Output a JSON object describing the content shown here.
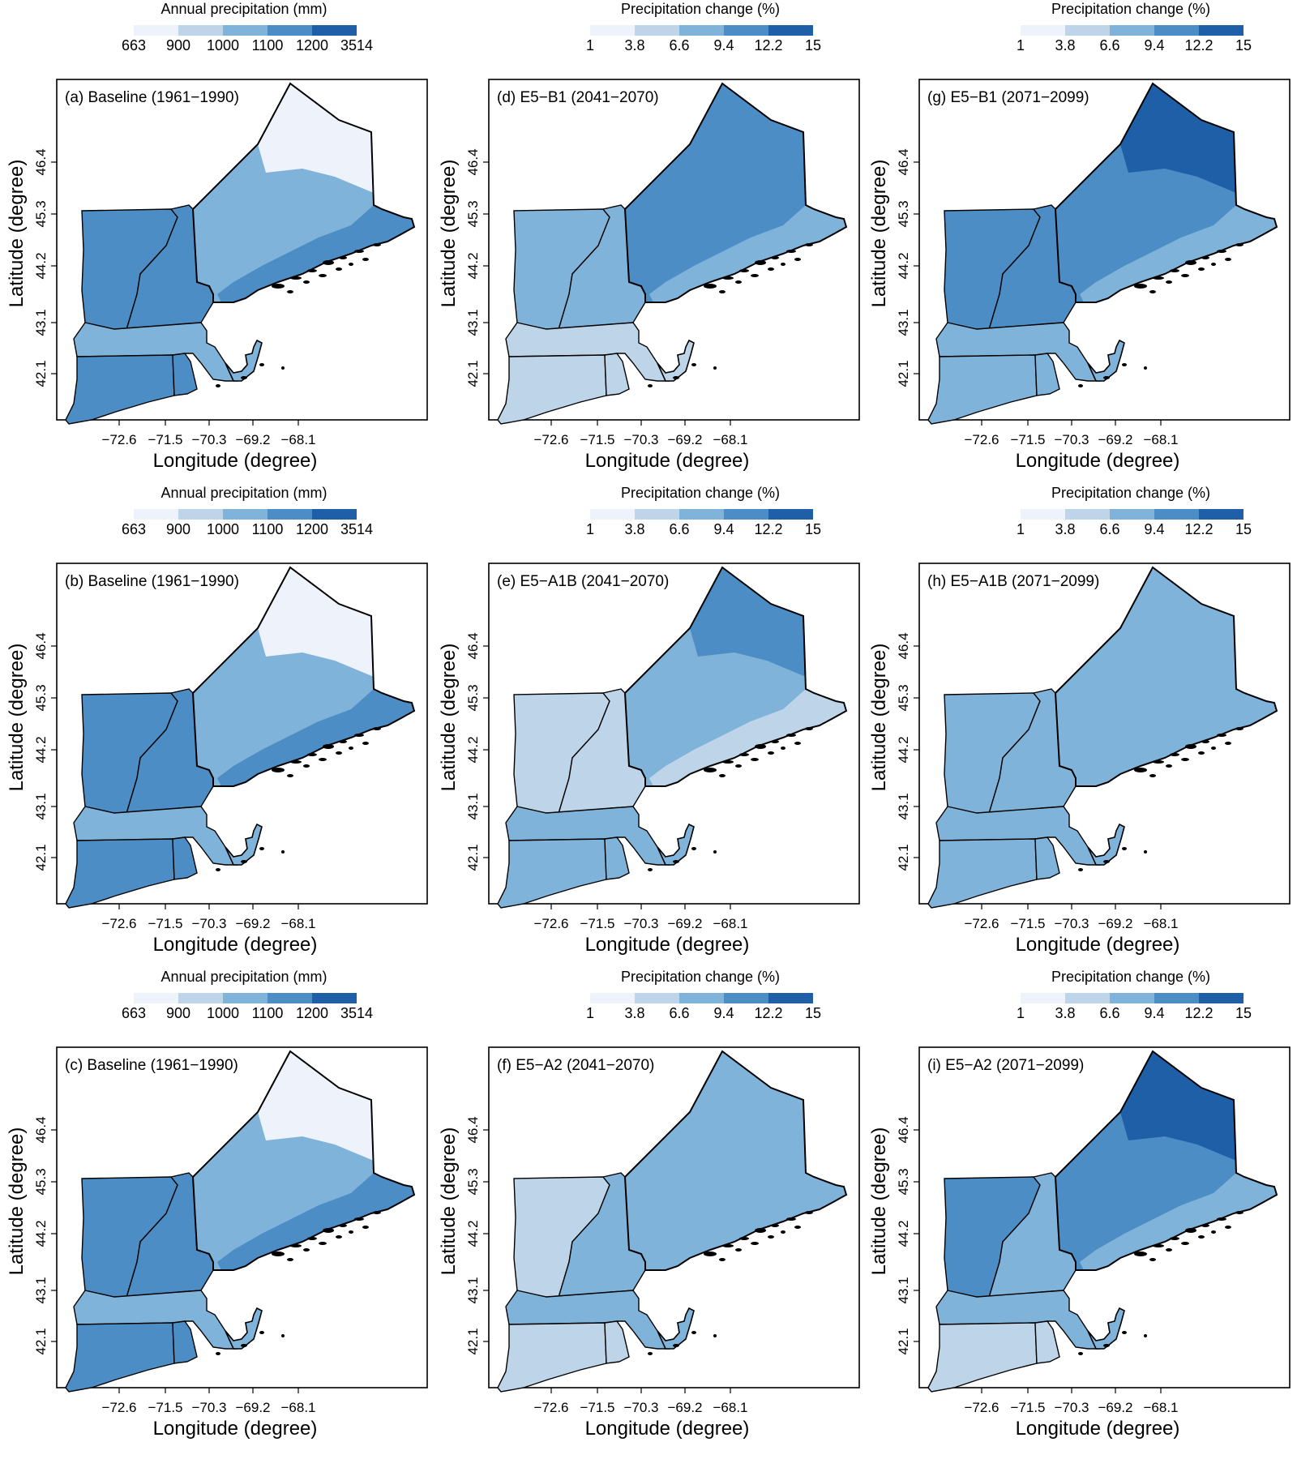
{
  "figure": {
    "type": "map_panel_grid",
    "rows": 3,
    "columns": 3,
    "x_axis_label": "Longitude (degree)",
    "y_axis_label": "Latitude (degree)",
    "x_ticks": [
      "−72.6",
      "−71.5",
      "−70.3",
      "−69.2",
      "−68.1"
    ],
    "y_ticks": [
      "42.1",
      "43.1",
      "44.2",
      "45.3",
      "46.4"
    ]
  },
  "legends": {
    "baseline": {
      "title": "Annual precipitation (mm)",
      "breaks": [
        "663",
        "900",
        "1000",
        "1100",
        "1200",
        "3514"
      ]
    },
    "change": {
      "title": "Precipitation change (%)",
      "breaks": [
        "1",
        "3.8",
        "6.6",
        "9.4",
        "12.2",
        "15"
      ]
    },
    "colors": [
      "#eef2fb",
      "#bed5e9",
      "#7fb3d9",
      "#4b8dc4",
      "#1f5fa8"
    ]
  },
  "state_fill_colors_note": "fill classes per map region, index into legends.colors",
  "panels": [
    {
      "id": "a",
      "label": "(a) Baseline (1961−1990)",
      "legend": "baseline",
      "fills": {
        "me_north": 0,
        "me_central": 2,
        "me_coast": 3,
        "nh": 3,
        "vt": 3,
        "ma": 2,
        "ct": 3,
        "ri": 3
      }
    },
    {
      "id": "d",
      "label": "(d) E5−B1 (2041−2070)",
      "legend": "change",
      "fills": {
        "me_north": 3,
        "me_central": 3,
        "me_coast": 2,
        "nh": 2,
        "vt": 2,
        "ma": 1,
        "ct": 1,
        "ri": 1
      }
    },
    {
      "id": "g",
      "label": "(g) E5−B1 (2071−2099)",
      "legend": "change",
      "fills": {
        "me_north": 4,
        "me_central": 3,
        "me_coast": 2,
        "nh": 3,
        "vt": 3,
        "ma": 2,
        "ct": 2,
        "ri": 2
      }
    },
    {
      "id": "b",
      "label": "(b) Baseline (1961−1990)",
      "legend": "baseline",
      "fills": {
        "me_north": 0,
        "me_central": 2,
        "me_coast": 3,
        "nh": 3,
        "vt": 3,
        "ma": 2,
        "ct": 3,
        "ri": 3
      }
    },
    {
      "id": "e",
      "label": "(e) E5−A1B (2041−2070)",
      "legend": "change",
      "fills": {
        "me_north": 3,
        "me_central": 2,
        "me_coast": 1,
        "nh": 1,
        "vt": 1,
        "ma": 2,
        "ct": 2,
        "ri": 2
      }
    },
    {
      "id": "h",
      "label": "(h) E5−A1B (2071−2099)",
      "legend": "change",
      "fills": {
        "me_north": 2,
        "me_central": 2,
        "me_coast": 2,
        "nh": 2,
        "vt": 2,
        "ma": 2,
        "ct": 2,
        "ri": 2
      }
    },
    {
      "id": "c",
      "label": "(c) Baseline (1961−1990)",
      "legend": "baseline",
      "fills": {
        "me_north": 0,
        "me_central": 2,
        "me_coast": 3,
        "nh": 3,
        "vt": 3,
        "ma": 2,
        "ct": 3,
        "ri": 3
      }
    },
    {
      "id": "f",
      "label": "(f) E5−A2 (2041−2070)",
      "legend": "change",
      "fills": {
        "me_north": 2,
        "me_central": 2,
        "me_coast": 2,
        "nh": 2,
        "vt": 1,
        "ma": 2,
        "ct": 1,
        "ri": 1
      }
    },
    {
      "id": "i",
      "label": "(i) E5−A2 (2071−2099)",
      "legend": "change",
      "fills": {
        "me_north": 4,
        "me_central": 3,
        "me_coast": 2,
        "nh": 2,
        "vt": 3,
        "ma": 2,
        "ct": 1,
        "ri": 1
      }
    }
  ]
}
